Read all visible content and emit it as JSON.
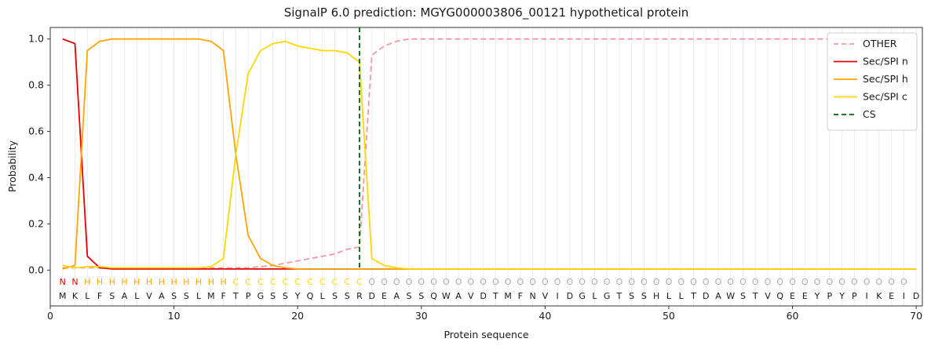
{
  "chart_data": {
    "type": "line",
    "title": "SignalP 6.0 prediction: MGYG000003806_00121 hypothetical protein",
    "xlabel": "Protein sequence",
    "ylabel": "Probability",
    "xlim": [
      0,
      70.5
    ],
    "ylim": [
      -0.155,
      1.05
    ],
    "xticks": [
      0,
      10,
      20,
      30,
      40,
      50,
      60,
      70
    ],
    "yticks": [
      "0.0",
      "0.2",
      "0.4",
      "0.6",
      "0.8",
      "1.0"
    ],
    "grid": "light vertical gridline at every residue position",
    "legend_position": "upper-right",
    "x": [
      1,
      2,
      3,
      4,
      5,
      6,
      7,
      8,
      9,
      10,
      11,
      12,
      13,
      14,
      15,
      16,
      17,
      18,
      19,
      20,
      21,
      22,
      23,
      24,
      25,
      26,
      27,
      28,
      29,
      30,
      31,
      32,
      33,
      34,
      35,
      36,
      37,
      38,
      39,
      40,
      41,
      42,
      43,
      44,
      45,
      46,
      47,
      48,
      49,
      50,
      51,
      52,
      53,
      54,
      55,
      56,
      57,
      58,
      59,
      60,
      61,
      62,
      63,
      64,
      65,
      66,
      67,
      68,
      69,
      70
    ],
    "series": [
      {
        "name": "OTHER",
        "color": "#f596a5",
        "dashed": true,
        "values": [
          0.01,
          0.01,
          0.01,
          0.01,
          0.01,
          0.01,
          0.01,
          0.01,
          0.01,
          0.01,
          0.01,
          0.01,
          0.01,
          0.01,
          0.01,
          0.01,
          0.015,
          0.02,
          0.03,
          0.04,
          0.05,
          0.06,
          0.07,
          0.09,
          0.1,
          0.93,
          0.97,
          0.99,
          1,
          1,
          1,
          1,
          1,
          1,
          1,
          1,
          1,
          1,
          1,
          1,
          1,
          1,
          1,
          1,
          1,
          1,
          1,
          1,
          1,
          1,
          1,
          1,
          1,
          1,
          1,
          1,
          1,
          1,
          1,
          1,
          1,
          1,
          1,
          1,
          1,
          1,
          1,
          1,
          1,
          1
        ]
      },
      {
        "name": "Sec/SPI n",
        "color": "#e60000",
        "dashed": false,
        "values": [
          1,
          0.98,
          0.06,
          0.01,
          0.005,
          0.005,
          0.005,
          0.005,
          0.005,
          0.005,
          0.005,
          0.005,
          0.005,
          0.005,
          0.005,
          0.005,
          0.005,
          0.005,
          0.005,
          0.005,
          0.005,
          0.005,
          0.005,
          0.005,
          0.005,
          0.005,
          0.005,
          0.005,
          0.005,
          0.005,
          0.005,
          0.005,
          0.005,
          0.005,
          0.005,
          0.005,
          0.005,
          0.005,
          0.005,
          0.005,
          0.005,
          0.005,
          0.005,
          0.005,
          0.005,
          0.005,
          0.005,
          0.005,
          0.005,
          0.005,
          0.005,
          0.005,
          0.005,
          0.005,
          0.005,
          0.005,
          0.005,
          0.005,
          0.005,
          0.005,
          0.005,
          0.005,
          0.005,
          0.005,
          0.005,
          0.005,
          0.005,
          0.005,
          0.005,
          0.005
        ]
      },
      {
        "name": "Sec/SPI h",
        "color": "#ffa500",
        "dashed": false,
        "values": [
          0.005,
          0.02,
          0.95,
          0.99,
          1,
          1,
          1,
          1,
          1,
          1,
          1,
          1,
          0.99,
          0.95,
          0.5,
          0.15,
          0.05,
          0.02,
          0.01,
          0.005,
          0.005,
          0.005,
          0.005,
          0.005,
          0.005,
          0.005,
          0.005,
          0.005,
          0.005,
          0.005,
          0.005,
          0.005,
          0.005,
          0.005,
          0.005,
          0.005,
          0.005,
          0.005,
          0.005,
          0.005,
          0.005,
          0.005,
          0.005,
          0.005,
          0.005,
          0.005,
          0.005,
          0.005,
          0.005,
          0.005,
          0.005,
          0.005,
          0.005,
          0.005,
          0.005,
          0.005,
          0.005,
          0.005,
          0.005,
          0.005,
          0.005,
          0.005,
          0.005,
          0.005,
          0.005,
          0.005,
          0.005,
          0.005,
          0.005,
          0.005
        ]
      },
      {
        "name": "Sec/SPI c",
        "color": "#ffd700",
        "dashed": false,
        "values": [
          0.02,
          0.01,
          0.015,
          0.015,
          0.01,
          0.01,
          0.01,
          0.01,
          0.01,
          0.01,
          0.01,
          0.01,
          0.015,
          0.05,
          0.5,
          0.85,
          0.95,
          0.98,
          0.99,
          0.97,
          0.96,
          0.95,
          0.95,
          0.94,
          0.9,
          0.05,
          0.02,
          0.01,
          0.005,
          0.005,
          0.005,
          0.005,
          0.005,
          0.005,
          0.005,
          0.005,
          0.005,
          0.005,
          0.005,
          0.005,
          0.005,
          0.005,
          0.005,
          0.005,
          0.005,
          0.005,
          0.005,
          0.005,
          0.005,
          0.005,
          0.005,
          0.005,
          0.005,
          0.005,
          0.005,
          0.005,
          0.005,
          0.005,
          0.005,
          0.005,
          0.005,
          0.005,
          0.005,
          0.005,
          0.005,
          0.005,
          0.005,
          0.005,
          0.005,
          0.005
        ]
      }
    ],
    "cs": {
      "label": "CS",
      "x": 25,
      "color": "#006400",
      "dashed": true
    },
    "sequence": {
      "residues": "MKLFSALVASSLMFTPGSSYQLSSRDEASSQWAVDTMFNVIDGLGTSSHLLTDAWSTVQEEYPYPIKEID",
      "region_labels": "NNHHHHHHHHHHHHCCCCCCCCCCCOOOOOOOOOOOOOOOOOOOOOOOOOOOOOOOOOOOOOOOOOOOO",
      "region_colors": {
        "N": "#e60000",
        "H": "#ffa500",
        "C": "#ffd700",
        "O": "#ababab"
      },
      "residue_color": "#1a1a1a"
    }
  }
}
